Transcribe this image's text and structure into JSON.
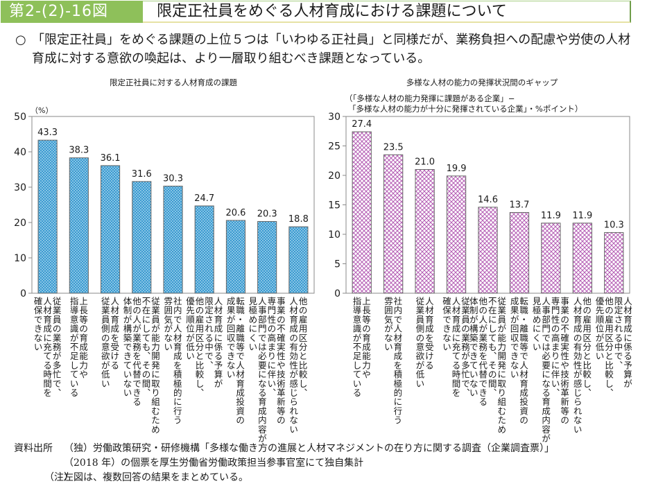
{
  "header": {
    "figure_number": "第2-(2)-16図",
    "title": "限定正社員をめぐる人材育成における課題について"
  },
  "summary": {
    "bullet": "○",
    "text": "「限定正社員」をめぐる課題の上位５つは「いわゆる正社員」と同様だが、業務負担への配慮や労使の人材育成に対する意欲の喚起は、より一層取り組むべき課題となっている。"
  },
  "colors": {
    "title_green": "#8ec05a",
    "left_bar_fill": "#3a9ad0",
    "left_bar_dot": "#bfe3f5",
    "right_bar_fill": "#ffffff",
    "right_bar_hatch": "#b45cb4",
    "axis": "#888888"
  },
  "chart_data": [
    {
      "type": "bar",
      "title": "限定正社員に対する人材育成の課題",
      "unit_label": "（%）",
      "xlabel": "",
      "ylabel": "%",
      "ylim": [
        0,
        50
      ],
      "yticks": [
        0,
        10,
        20,
        30,
        40,
        50
      ],
      "grid": false,
      "categories": [
        [
          "従業員の業務が多忙で、",
          "人材育成に充てる時間を",
          "確保できない"
        ],
        [
          "上長等の育成能力や",
          "指導意識が不足している"
        ],
        [
          "人材育成を受ける",
          "従業員側の意欲が低い"
        ],
        [
          "従業員が能力開発に取り組むため",
          "不在にしても、その間、",
          "他の人が業務を代替できる",
          "体制が構築できていない"
        ],
        [
          "社内で人材育成を積極的に行う",
          "雰囲気がない"
        ],
        [
          "人材育成に係る予算が",
          "限定される中で、",
          "他の雇用区分と比較し、",
          "優先順位が低い"
        ],
        [
          "転職・離職等で人材育成投資の",
          "成果が回収できない"
        ],
        [
          "事業の不確実性や技術革新等の",
          "専門性の高まりに伴い、",
          "人事部門では必要になる育成内容が",
          "見極めにくい"
        ],
        [
          "他の雇用区分と比較し、",
          "人材育成の有効性が感じられない"
        ]
      ],
      "values": [
        43.3,
        38.3,
        36.1,
        31.6,
        30.3,
        24.7,
        20.6,
        20.3,
        18.8
      ],
      "value_labels": [
        "43.3",
        "38.3",
        "36.1",
        "31.6",
        "30.3",
        "24.7",
        "20.6",
        "20.3",
        "18.8"
      ]
    },
    {
      "type": "bar",
      "title": "多様な人材の能力の発揮状況間のギャップ",
      "subtitle": [
        "（「多様な人材の能力発揮に課題がある企業」−",
        "「多様な人材の能力が十分に発揮されている企業」・%ポイント）"
      ],
      "xlabel": "",
      "ylabel": "%ポイント",
      "ylim": [
        0,
        30
      ],
      "yticks": [
        0,
        5,
        10,
        15,
        20,
        25,
        30
      ],
      "grid": false,
      "categories": [
        [
          "上長等の育成能力や",
          "指導意識が不足している"
        ],
        [
          "社内で人材育成を積極的に行う",
          "雰囲気がない"
        ],
        [
          "人材育成を受ける",
          "従業員側の意欲が低い"
        ],
        [
          "従業員の業務が多忙で、",
          "人材育成に充てる時間を",
          "確保できない"
        ],
        [
          "従業員が能力開発に取り組むため",
          "不在にしても、その間、",
          "他の人が業務を代替できる",
          "体制が構築できていない"
        ],
        [
          "転職・離職等で人材育成投資の",
          "成果が回収できない"
        ],
        [
          "事業の不確実性や技術革新等の",
          "専門性の高まりに伴い、",
          "人事部門では必要になる育成内容が",
          "見極めにくい"
        ],
        [
          "他の雇用区分と比較し、",
          "人材育成の有効性が感じられない"
        ],
        [
          "人材育成に係る予算が",
          "限定される中で、",
          "他の雇用区分と比較し、",
          "優先順位が低い"
        ]
      ],
      "values": [
        27.4,
        23.5,
        21.0,
        19.9,
        14.6,
        13.7,
        11.9,
        11.9,
        10.3
      ],
      "value_labels": [
        "27.4",
        "23.5",
        "21.0",
        "19.9",
        "14.6",
        "13.7",
        "11.9",
        "11.9",
        "10.3"
      ]
    }
  ],
  "footer": {
    "source_label": "資料出所",
    "source_line1": "（独）労働政策研究・研修機構「多様な働き方の進展と人材マネジメントの在り方に関する調査（企業調査票）」",
    "source_line2": "（2018 年）の個票を厚生労働省労働政策担当参事官室にて独自集計",
    "note_label": "（注）",
    "note_text": "左図は、複数回答の結果をまとめている。"
  }
}
